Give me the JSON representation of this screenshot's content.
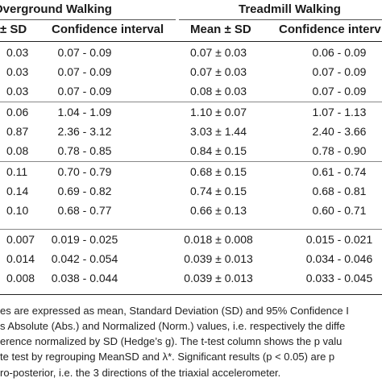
{
  "header": {
    "group_overground": "Overground Walking",
    "group_treadmill": "Treadmill Walking",
    "col_sd": "± SD",
    "col_ci_overground": "Confidence interval",
    "col_mean_sd": "Mean ± SD",
    "col_ci_treadmill": "Confidence interv"
  },
  "table": {
    "groups": [
      {
        "rows": [
          [
            "0.03",
            "0.07 - 0.09",
            "0.07 ± 0.03",
            "0.06 - 0.09"
          ],
          [
            "0.03",
            "0.07 - 0.09",
            "0.07 ± 0.03",
            "0.07 - 0.09"
          ],
          [
            "0.03",
            "0.07 - 0.09",
            "0.08 ± 0.03",
            "0.07 - 0.09"
          ]
        ]
      },
      {
        "rows": [
          [
            "0.06",
            "1.04 - 1.09",
            "1.10 ± 0.07",
            "1.07 - 1.13"
          ],
          [
            "0.87",
            "2.36 - 3.12",
            "3.03 ± 1.44",
            "2.40 - 3.66"
          ],
          [
            "0.08",
            "0.78 - 0.85",
            "0.84 ± 0.15",
            "0.78 - 0.90"
          ]
        ]
      },
      {
        "rows": [
          [
            "0.11",
            "0.70 - 0.79",
            "0.68 ± 0.15",
            "0.61 - 0.74"
          ],
          [
            "0.14",
            "0.69 - 0.82",
            "0.74 ± 0.15",
            "0.68 - 0.81"
          ],
          [
            "0.10",
            "0.68 - 0.77",
            "0.66 ± 0.13",
            "0.60 - 0.71"
          ]
        ]
      },
      {
        "rows": [
          [
            "0.007",
            "0.019 - 0.025",
            "0.018 ± 0.008",
            "0.015 - 0.021"
          ],
          [
            "0.014",
            "0.042 - 0.054",
            "0.039 ± 0.013",
            "0.034 - 0.046"
          ],
          [
            "0.008",
            "0.038 - 0.044",
            "0.039 ± 0.013",
            "0.033 - 0.045"
          ]
        ]
      }
    ]
  },
  "notes": [
    "es are expressed as mean, Standard Deviation (SD) and 95% Confidence I",
    "s Absolute (Abs.) and Normalized (Norm.) values, i.e. respectively the diffe",
    "erence normalized by SD (Hedge’s g). The t-test column shows the p valu",
    "te test by regrouping MeanSD and λ*. Significant results (p < 0.05) are p",
    "ro-posterior, i.e. the 3 directions of the triaxial accelerometer."
  ]
}
